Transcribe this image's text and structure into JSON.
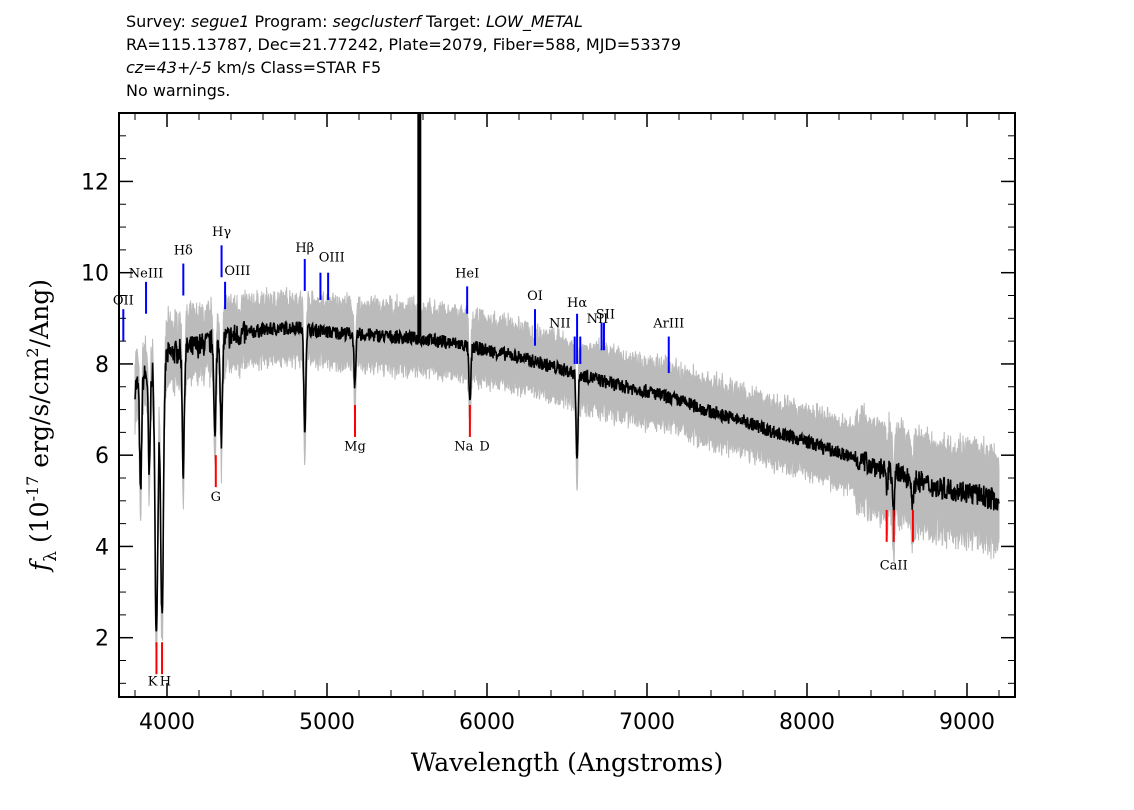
{
  "header": {
    "line1": {
      "survey_label": "Survey: ",
      "survey": "segue1",
      "program_label": " Program: ",
      "program": "segclusterf",
      "target_label": " Target: ",
      "target": "LOW_METAL"
    },
    "line2": "RA=115.13787, Dec=21.77242, Plate=2079, Fiber=588, MJD=53379",
    "line3": {
      "cz": "cz=43+/-5",
      "rest": " km/s Class=STAR F5"
    },
    "line4": "No warnings."
  },
  "chart_data": {
    "type": "line",
    "xlabel": "Wavelength (Angstroms)",
    "ylabel_parts": {
      "f": "f",
      "sub": "λ",
      "pre": " (10",
      "exp": "-17",
      "mid": " erg/s/cm",
      "exp2": "2",
      "post": "/Ang)"
    },
    "xlim": [
      3700,
      9300
    ],
    "ylim": [
      0.7,
      13.5
    ],
    "x_ticks": [
      4000,
      5000,
      6000,
      7000,
      8000,
      9000
    ],
    "x_tick_labels": [
      "4000",
      "5000",
      "6000",
      "7000",
      "8000",
      "9000"
    ],
    "y_ticks": [
      2,
      4,
      6,
      8,
      10,
      12
    ],
    "y_tick_labels": [
      "2",
      "4",
      "6",
      "8",
      "10",
      "12"
    ],
    "colors": {
      "flux": "#000000",
      "error": "#bbbbbb",
      "emission": "#0000ff",
      "absorption": "#ff0000"
    },
    "continuum_x": [
      3800,
      3900,
      4000,
      4200,
      4400,
      4600,
      4800,
      5000,
      5200,
      5400,
      5600,
      5800,
      6000,
      6200,
      6400,
      6600,
      6800,
      7000,
      7200,
      7400,
      7600,
      7800,
      8000,
      8200,
      8400,
      8600,
      8800,
      9000,
      9200
    ],
    "continuum_y": [
      7.5,
      7.9,
      8.2,
      8.4,
      8.6,
      8.75,
      8.8,
      8.7,
      8.65,
      8.6,
      8.55,
      8.45,
      8.3,
      8.15,
      7.95,
      7.75,
      7.55,
      7.4,
      7.2,
      6.95,
      6.75,
      6.5,
      6.3,
      6.05,
      5.8,
      5.55,
      5.3,
      5.2,
      5.0
    ],
    "absorption_features": [
      {
        "x": 3835,
        "y": 5.1
      },
      {
        "x": 3889,
        "y": 5.5
      },
      {
        "x": 3934,
        "y": 2.0
      },
      {
        "x": 3969,
        "y": 2.5
      },
      {
        "x": 4102,
        "y": 5.6
      },
      {
        "x": 4300,
        "y": 6.3
      },
      {
        "x": 4340,
        "y": 6.2
      },
      {
        "x": 4861,
        "y": 6.5
      },
      {
        "x": 5175,
        "y": 7.5
      },
      {
        "x": 5893,
        "y": 7.1
      },
      {
        "x": 6563,
        "y": 5.9
      },
      {
        "x": 8498,
        "y": 5.2
      },
      {
        "x": 8542,
        "y": 4.8
      },
      {
        "x": 8662,
        "y": 4.9
      }
    ],
    "spike": {
      "x": 5577,
      "y_low": 8.6,
      "y_high": 13.5
    },
    "emission_lines": [
      {
        "label": "OII",
        "x": 3727,
        "y0": 9.2,
        "y1": 8.5,
        "lx": 3727,
        "ly": 9.3
      },
      {
        "label": "NeIII",
        "x": 3869,
        "y0": 9.8,
        "y1": 9.1,
        "lx": 3869,
        "ly": 9.9
      },
      {
        "label": "Hδ",
        "x": 4102,
        "y0": 10.2,
        "y1": 9.5,
        "lx": 4102,
        "ly": 10.4
      },
      {
        "label": "Hγ",
        "x": 4341,
        "y0": 10.6,
        "y1": 9.9,
        "lx": 4341,
        "ly": 10.8
      },
      {
        "label": "OIII",
        "x": 4363,
        "y0": 9.8,
        "y1": 9.2,
        "lx": 4440,
        "ly": 9.95
      },
      {
        "label": "Hβ",
        "x": 4861,
        "y0": 10.3,
        "y1": 9.6,
        "lx": 4861,
        "ly": 10.45
      },
      {
        "label": "OIII",
        "x": 4959,
        "y0": 10.0,
        "y1": 9.4,
        "lx": 5030,
        "ly": 10.25
      },
      {
        "label": "OIII",
        "x": 5007,
        "y0": 10.0,
        "y1": 9.4,
        "lx": null,
        "ly": null
      },
      {
        "label": "HeI",
        "x": 5876,
        "y0": 9.7,
        "y1": 9.1,
        "lx": 5876,
        "ly": 9.9
      },
      {
        "label": "OI",
        "x": 6300,
        "y0": 9.2,
        "y1": 8.4,
        "lx": 6300,
        "ly": 9.4
      },
      {
        "label": "NII",
        "x": 6548,
        "y0": 8.6,
        "y1": 8.0,
        "lx": 6455,
        "ly": 8.8
      },
      {
        "label": "Hα",
        "x": 6563,
        "y0": 9.1,
        "y1": 8.0,
        "lx": 6563,
        "ly": 9.25
      },
      {
        "label": "NII",
        "x": 6583,
        "y0": 8.6,
        "y1": 8.0,
        "lx": null,
        "ly": null
      },
      {
        "label": "NII",
        "x": 6716,
        "y0": 8.9,
        "y1": 8.3,
        "lx": 6690,
        "ly": 8.9
      },
      {
        "label": "SII",
        "x": 6731,
        "y0": 8.9,
        "y1": 8.3,
        "lx": 6740,
        "ly": 9.0
      },
      {
        "label": "ArIII",
        "x": 7136,
        "y0": 8.6,
        "y1": 7.8,
        "lx": 7136,
        "ly": 8.8
      }
    ],
    "absorption_lines": [
      {
        "label": "K",
        "x": 3934,
        "y0": 1.9,
        "y1": 1.2,
        "lx": 3910,
        "ly": 0.95
      },
      {
        "label": "H",
        "x": 3969,
        "y0": 1.9,
        "y1": 1.2,
        "lx": 3990,
        "ly": 0.95
      },
      {
        "label": "G",
        "x": 4305,
        "y0": 6.0,
        "y1": 5.3,
        "lx": 4305,
        "ly": 5.0
      },
      {
        "label": "Mg",
        "x": 5175,
        "y0": 7.1,
        "y1": 6.4,
        "lx": 5175,
        "ly": 6.1
      },
      {
        "label": "Na",
        "x": 5893,
        "y0": 7.1,
        "y1": 6.4,
        "lx": 5855,
        "ly": 6.1
      },
      {
        "label": "D",
        "x": 5893,
        "y0": null,
        "y1": null,
        "lx": 5985,
        "ly": 6.1
      },
      {
        "label": "CaII",
        "x": 8498,
        "y0": 4.8,
        "y1": 4.1,
        "lx": 8542,
        "ly": 3.5
      },
      {
        "label": "CaII",
        "x": 8542,
        "y0": 4.8,
        "y1": 4.1,
        "lx": null,
        "ly": null
      },
      {
        "label": "CaII",
        "x": 8662,
        "y0": 4.8,
        "y1": 4.1,
        "lx": null,
        "ly": null
      }
    ]
  }
}
